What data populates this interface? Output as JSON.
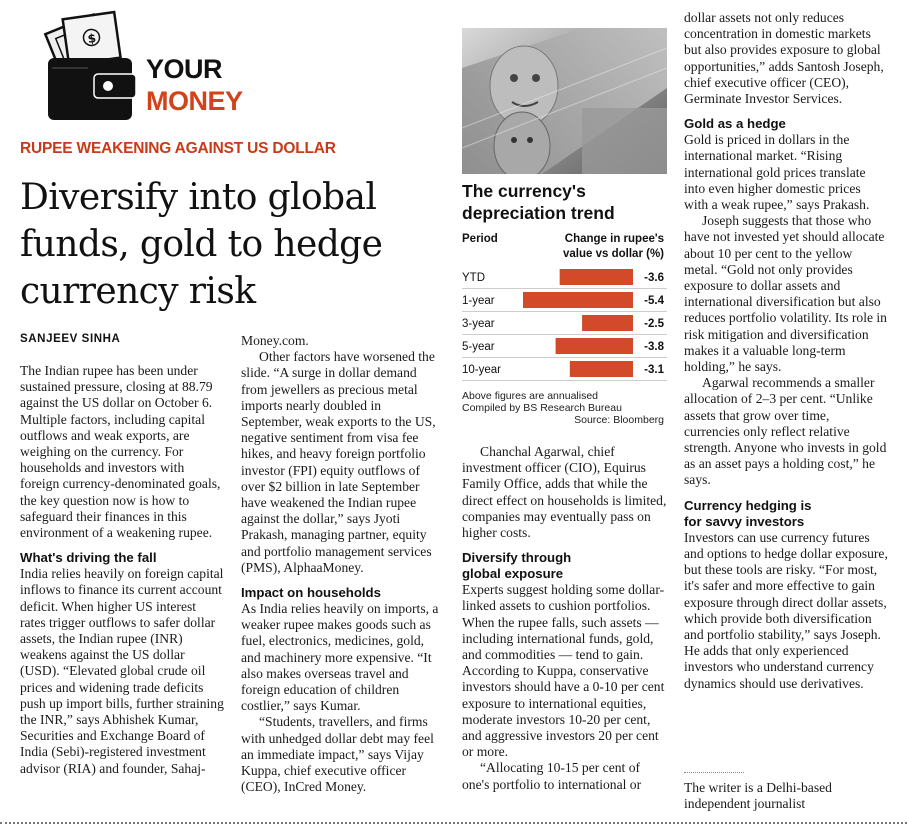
{
  "section": {
    "line1": "YOUR",
    "line2": "MONEY",
    "icon": "wallet-with-cash-icon",
    "accent": "#d2421b"
  },
  "kicker": "RUPEE WEAKENING AGAINST US DOLLAR",
  "headline": "Diversify into global funds, gold to hedge currency risk",
  "byline": "SANJEEV SINHA",
  "col1": {
    "p1": "The Indian rupee has been under sustained pressure, closing at 88.79 against the US dollar on October 6. Multiple factors, including capital outflows and weak exports, are weighing on the currency. For households and investors with foreign currency-denominated goals, the key question now is how to safeguard their finances in this environment of a weakening rupee.",
    "h1": "What's driving the fall",
    "p2": "India relies heavily on foreign capital inflows to finance its current account deficit. When higher US interest rates trigger outflows to safer dollar assets, the Indian rupee (INR) weakens against the US dollar (USD). “Elevated global crude oil prices and widening trade deficits push up import bills, further straining the INR,” says Abhishek Kumar, Securities and Exchange Board of India (Sebi)-registered investment advisor (RIA) and founder, Sahaj-"
  },
  "col2": {
    "p1": "Money.com.",
    "p2": "Other factors have worsened the slide. “A surge in dollar demand from jewellers as precious metal imports nearly doubled in September, weak exports to the US, negative sentiment from visa fee hikes, and heavy foreign portfolio investor (FPI) equity outflows of over $2 billion in late September have weakened the Indian rupee against the dollar,” says Jyoti Prakash, managing partner, equity and portfolio management services (PMS), AlphaaMoney.",
    "h1": "Impact on households",
    "p3": "As India relies heavily on imports, a weaker rupee makes goods such as fuel, electronics, medicines, gold, and machinery more expensive. “It also makes overseas travel and foreign education of children costlier,” says Kumar.",
    "p4": "“Students, travellers, and firms with unhedged dollar debt may feel an immediate impact,” says Vijay Kuppa, chief executive officer (CEO), InCred Money."
  },
  "col3": {
    "p1": "Chanchal Agarwal, chief investment officer (CIO), Equirus Family Office, adds that while the direct effect on households is limited, companies may eventually pass on higher costs.",
    "h1a": "Diversify through",
    "h1b": "global exposure",
    "p2": "Experts suggest holding some dollar-linked assets to cushion portfolios. When the rupee falls, such assets — including international funds, gold, and commodities — tend to gain. According to Kuppa, conservative investors should have a 0-10 per cent exposure to international equities, moderate investors 10-20 per cent, and aggressive investors 20 per cent or more.",
    "p3": "“Allocating 10-15 per cent of one's portfolio to international or"
  },
  "col4": {
    "p1": "dollar assets not only reduces concentration in domestic markets but also provides exposure to global opportunities,” adds Santosh Joseph, chief executive officer (CEO), Germinate Investor Services.",
    "h1": "Gold as a hedge",
    "p2": "Gold is priced in dollars in the international market. “Rising international gold prices translate into even higher domestic prices with a weak rupee,” says Prakash.",
    "p3": "Joseph suggests that those who have not invested yet should allocate about 10 per cent to the yellow metal. “Gold not only provides exposure to dollar assets and international diversification but also reduces portfolio volatility. Its role in risk mitigation and diversification makes it a valuable long-term holding,” he says.",
    "p4": "Agarwal recommends a smaller allocation of 2–3 per cent. “Unlike assets that grow over time, currencies only reflect relative strength. Anyone who invests in gold as an asset pays a holding cost,” he says.",
    "h2a": "Currency hedging is",
    "h2b": "for savvy investors",
    "p5": "Investors can use currency futures and options to hedge dollar exposure, but these tools are risky. “For most, it's safer and more effective to gain exposure through direct dollar assets, which provide both diversification and portfolio stability,” says Joseph. He adds that only experienced investors who understand currency dynamics should use derivatives.",
    "note": "The writer is a Delhi-based independent journalist"
  },
  "photo": {
    "icon": "currency-notes-photo"
  },
  "chart_data": {
    "type": "bar",
    "title": "The currency's depreciation trend",
    "column_headers": {
      "period": "Period",
      "value": "Change in rupee's value vs dollar (%)"
    },
    "categories": [
      "YTD",
      "1-year",
      "3-year",
      "5-year",
      "10-year"
    ],
    "values": [
      -3.6,
      -5.4,
      -2.5,
      -3.8,
      -3.1
    ],
    "value_labels": [
      "-3.6",
      "-5.4",
      "-2.5",
      "-3.8",
      "-3.1"
    ],
    "bar_color": "#d24a2a",
    "notes": [
      "Above figures are annualised",
      "Compiled by BS Research Bureau"
    ],
    "source": "Source: Bloomberg"
  }
}
